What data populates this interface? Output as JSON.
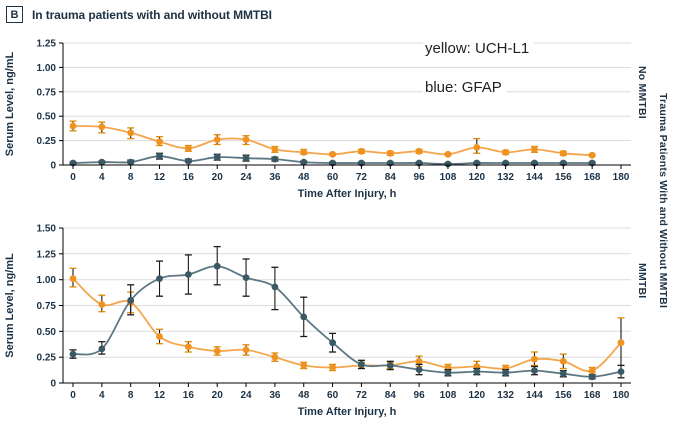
{
  "header": {
    "panel_letter": "B",
    "title": "In trauma patients with and without MMTBI"
  },
  "annotations": {
    "uchl1_label": "yellow: UCH-L1",
    "gfap_label": "blue: GFAP"
  },
  "right_labels": {
    "top_panel": "No MMTBI",
    "bottom_panel": "MMTBI",
    "outer": "Trauma Patients With and Without MMTBI"
  },
  "colors": {
    "grid": "#dcdcdc",
    "axis": "#000000",
    "tick_text": "#1c3245",
    "errbar_stem": "#1a1a1a",
    "uchl1_marker": "#ee9322",
    "uchl1_line": "#f3a64b",
    "uchl1_cap": "#e08a00",
    "gfap_marker": "#3a5964",
    "gfap_line": "#5d7884",
    "gfap_cap": "#1a1a1a"
  },
  "chart_data": [
    {
      "type": "line",
      "panel": "No MMTBI",
      "xlabel": "Time After Injury, h",
      "ylabel": "Serum Level, ng/mL",
      "ylim": [
        0,
        1.25
      ],
      "grid": true,
      "ytick_values": [
        0,
        0.25,
        0.5,
        0.75,
        1.0,
        1.25
      ],
      "ytick_labels": [
        "0",
        "0.25",
        "0.50",
        "0.75",
        "1.00",
        "1.25"
      ],
      "x": [
        "0",
        "4",
        "8",
        "12",
        "16",
        "20",
        "24",
        "36",
        "48",
        "60",
        "72",
        "84",
        "96",
        "108",
        "120",
        "132",
        "144",
        "156",
        "168",
        "180"
      ],
      "series": [
        {
          "name": "UCH-L1",
          "color_role": "uchl1",
          "values": [
            0.4,
            0.39,
            0.33,
            0.24,
            0.17,
            0.26,
            0.26,
            0.16,
            0.13,
            0.11,
            0.14,
            0.12,
            0.14,
            0.11,
            0.18,
            0.13,
            0.16,
            0.12,
            0.1,
            null
          ],
          "err_low": [
            0.35,
            0.33,
            0.27,
            0.2,
            0.14,
            0.21,
            0.21,
            0.13,
            0.11,
            0.1,
            0.12,
            0.1,
            0.12,
            0.1,
            0.12,
            0.11,
            0.13,
            0.1,
            0.09,
            null
          ],
          "err_high": [
            0.45,
            0.44,
            0.38,
            0.29,
            0.2,
            0.31,
            0.3,
            0.19,
            0.16,
            0.12,
            0.16,
            0.14,
            0.16,
            0.12,
            0.27,
            0.15,
            0.19,
            0.14,
            0.11,
            null
          ]
        },
        {
          "name": "GFAP",
          "color_role": "gfap",
          "values": [
            0.02,
            0.03,
            0.03,
            0.09,
            0.04,
            0.08,
            0.07,
            0.06,
            0.03,
            0.02,
            0.02,
            0.02,
            0.02,
            0.01,
            0.02,
            0.02,
            0.02,
            0.02,
            0.02,
            null
          ],
          "err_low": [
            0.01,
            0.02,
            0.02,
            0.06,
            0.03,
            0.05,
            0.04,
            0.04,
            0.02,
            0.01,
            0.01,
            0.01,
            0.01,
            0.01,
            0.01,
            0.01,
            0.01,
            0.01,
            0.01,
            null
          ],
          "err_high": [
            0.03,
            0.04,
            0.05,
            0.12,
            0.06,
            0.11,
            0.1,
            0.08,
            0.04,
            0.03,
            0.03,
            0.03,
            0.03,
            0.02,
            0.03,
            0.03,
            0.03,
            0.03,
            0.03,
            null
          ]
        }
      ]
    },
    {
      "type": "line",
      "panel": "MMTBI",
      "xlabel": "Time After Injury, h",
      "ylabel": "Serum Level, ng/mL",
      "ylim": [
        0,
        1.5
      ],
      "grid": true,
      "ytick_values": [
        0,
        0.25,
        0.5,
        0.75,
        1.0,
        1.25,
        1.5
      ],
      "ytick_labels": [
        "0",
        "0.25",
        "0.50",
        "0.75",
        "1.00",
        "1.25",
        "1.50"
      ],
      "x": [
        "0",
        "4",
        "8",
        "12",
        "16",
        "20",
        "24",
        "36",
        "48",
        "60",
        "72",
        "84",
        "96",
        "108",
        "120",
        "132",
        "144",
        "156",
        "168",
        "180"
      ],
      "series": [
        {
          "name": "UCH-L1",
          "color_role": "uchl1",
          "values": [
            1.01,
            0.76,
            0.78,
            0.45,
            0.35,
            0.31,
            0.32,
            0.25,
            0.17,
            0.15,
            0.17,
            0.17,
            0.21,
            0.15,
            0.16,
            0.14,
            0.23,
            0.21,
            0.12,
            0.39
          ],
          "err_low": [
            0.93,
            0.69,
            0.68,
            0.38,
            0.3,
            0.27,
            0.27,
            0.21,
            0.14,
            0.12,
            0.14,
            0.14,
            0.16,
            0.12,
            0.12,
            0.11,
            0.17,
            0.14,
            0.1,
            0.17
          ],
          "err_high": [
            1.11,
            0.85,
            0.88,
            0.52,
            0.4,
            0.35,
            0.37,
            0.29,
            0.2,
            0.18,
            0.2,
            0.2,
            0.26,
            0.18,
            0.21,
            0.17,
            0.3,
            0.28,
            0.15,
            0.63
          ]
        },
        {
          "name": "GFAP",
          "color_role": "gfap",
          "values": [
            0.28,
            0.33,
            0.8,
            1.01,
            1.05,
            1.13,
            1.02,
            0.93,
            0.64,
            0.39,
            0.18,
            0.17,
            0.13,
            0.1,
            0.11,
            0.1,
            0.12,
            0.09,
            0.06,
            0.11
          ],
          "err_low": [
            0.24,
            0.28,
            0.66,
            0.84,
            0.86,
            0.95,
            0.84,
            0.71,
            0.45,
            0.3,
            0.14,
            0.13,
            0.08,
            0.07,
            0.08,
            0.07,
            0.08,
            0.06,
            0.04,
            0.05
          ],
          "err_high": [
            0.32,
            0.4,
            0.95,
            1.18,
            1.24,
            1.32,
            1.2,
            1.12,
            0.83,
            0.48,
            0.22,
            0.21,
            0.18,
            0.13,
            0.14,
            0.13,
            0.16,
            0.12,
            0.08,
            0.17
          ]
        }
      ]
    }
  ]
}
